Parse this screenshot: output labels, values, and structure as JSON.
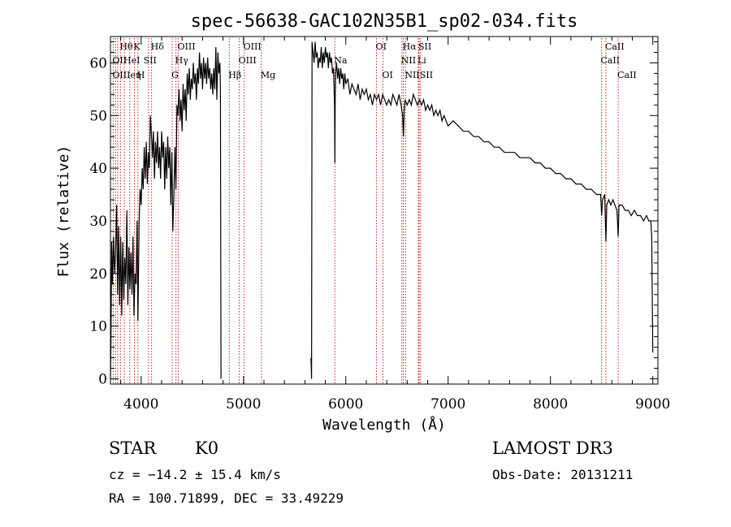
{
  "chart_data": {
    "type": "line",
    "title": "spec-56638-GAC102N35B1_sp02-034.fits",
    "xlabel": "Wavelength (Å)",
    "ylabel": "Flux (relative)",
    "xlim": [
      3700,
      9050
    ],
    "ylim": [
      -1,
      65
    ],
    "xticks": [
      4000,
      5000,
      6000,
      7000,
      8000,
      9000
    ],
    "yticks": [
      0,
      10,
      20,
      30,
      40,
      50,
      60
    ],
    "grid": false,
    "series": [
      {
        "name": "flux",
        "gap": [
          4780,
          5660
        ],
        "points": [
          [
            3700,
            0
          ],
          [
            3705,
            7
          ],
          [
            3712,
            26
          ],
          [
            3720,
            18
          ],
          [
            3730,
            27
          ],
          [
            3740,
            20
          ],
          [
            3750,
            24
          ],
          [
            3760,
            33
          ],
          [
            3770,
            16
          ],
          [
            3780,
            29
          ],
          [
            3790,
            14
          ],
          [
            3800,
            27
          ],
          [
            3810,
            12
          ],
          [
            3820,
            26
          ],
          [
            3830,
            15
          ],
          [
            3840,
            23
          ],
          [
            3850,
            18
          ],
          [
            3860,
            32
          ],
          [
            3870,
            14
          ],
          [
            3880,
            25
          ],
          [
            3890,
            17
          ],
          [
            3900,
            24
          ],
          [
            3910,
            16
          ],
          [
            3920,
            27
          ],
          [
            3930,
            12
          ],
          [
            3940,
            20
          ],
          [
            3950,
            18
          ],
          [
            3960,
            30
          ],
          [
            3968,
            11
          ],
          [
            3980,
            30
          ],
          [
            3990,
            36
          ],
          [
            4000,
            33
          ],
          [
            4010,
            40
          ],
          [
            4020,
            36
          ],
          [
            4030,
            44
          ],
          [
            4040,
            38
          ],
          [
            4050,
            45
          ],
          [
            4060,
            37
          ],
          [
            4070,
            43
          ],
          [
            4080,
            40
          ],
          [
            4090,
            50
          ],
          [
            4102,
            46
          ],
          [
            4110,
            42
          ],
          [
            4120,
            47
          ],
          [
            4130,
            38
          ],
          [
            4140,
            45
          ],
          [
            4150,
            41
          ],
          [
            4160,
            47
          ],
          [
            4170,
            40
          ],
          [
            4180,
            44
          ],
          [
            4190,
            38
          ],
          [
            4200,
            47
          ],
          [
            4210,
            42
          ],
          [
            4220,
            45
          ],
          [
            4230,
            36
          ],
          [
            4240,
            44
          ],
          [
            4250,
            38
          ],
          [
            4260,
            46
          ],
          [
            4270,
            40
          ],
          [
            4280,
            44
          ],
          [
            4290,
            33
          ],
          [
            4300,
            43
          ],
          [
            4310,
            28
          ],
          [
            4320,
            35
          ],
          [
            4330,
            44
          ],
          [
            4340,
            36
          ],
          [
            4350,
            52
          ],
          [
            4360,
            50
          ],
          [
            4370,
            55
          ],
          [
            4380,
            49
          ],
          [
            4390,
            53
          ],
          [
            4400,
            47
          ],
          [
            4410,
            56
          ],
          [
            4420,
            51
          ],
          [
            4430,
            55
          ],
          [
            4440,
            49
          ],
          [
            4450,
            58
          ],
          [
            4460,
            54
          ],
          [
            4470,
            59
          ],
          [
            4480,
            53
          ],
          [
            4490,
            57
          ],
          [
            4500,
            55
          ],
          [
            4510,
            60
          ],
          [
            4520,
            56
          ],
          [
            4530,
            58
          ],
          [
            4540,
            53
          ],
          [
            4550,
            59
          ],
          [
            4560,
            56
          ],
          [
            4570,
            62
          ],
          [
            4580,
            57
          ],
          [
            4590,
            60
          ],
          [
            4600,
            55
          ],
          [
            4610,
            61
          ],
          [
            4620,
            57
          ],
          [
            4630,
            60
          ],
          [
            4640,
            56
          ],
          [
            4650,
            61
          ],
          [
            4660,
            57
          ],
          [
            4670,
            59
          ],
          [
            4680,
            55
          ],
          [
            4690,
            58
          ],
          [
            4700,
            54
          ],
          [
            4710,
            59
          ],
          [
            4720,
            55
          ],
          [
            4730,
            63
          ],
          [
            4740,
            53
          ],
          [
            4750,
            62
          ],
          [
            4760,
            58
          ],
          [
            4770,
            60
          ],
          [
            4775,
            55
          ],
          [
            4780,
            0
          ],
          [
            5660,
            4
          ],
          [
            5665,
            0
          ],
          [
            5670,
            64
          ],
          [
            5680,
            62
          ],
          [
            5690,
            60
          ],
          [
            5700,
            64
          ],
          [
            5710,
            61
          ],
          [
            5720,
            62
          ],
          [
            5730,
            59
          ],
          [
            5740,
            61
          ],
          [
            5750,
            60
          ],
          [
            5760,
            63
          ],
          [
            5770,
            59
          ],
          [
            5780,
            62
          ],
          [
            5790,
            60
          ],
          [
            5800,
            63
          ],
          [
            5810,
            61
          ],
          [
            5820,
            62
          ],
          [
            5830,
            59
          ],
          [
            5840,
            62
          ],
          [
            5850,
            60
          ],
          [
            5860,
            61
          ],
          [
            5870,
            58
          ],
          [
            5880,
            59
          ],
          [
            5890,
            52
          ],
          [
            5893,
            41
          ],
          [
            5896,
            53
          ],
          [
            5900,
            58
          ],
          [
            5910,
            60
          ],
          [
            5920,
            57
          ],
          [
            5930,
            59
          ],
          [
            5940,
            56
          ],
          [
            5950,
            59
          ],
          [
            5960,
            57
          ],
          [
            5970,
            58
          ],
          [
            5980,
            55
          ],
          [
            5990,
            58
          ],
          [
            6000,
            56
          ],
          [
            6020,
            57
          ],
          [
            6040,
            54
          ],
          [
            6060,
            56
          ],
          [
            6080,
            55
          ],
          [
            6100,
            54
          ],
          [
            6120,
            56
          ],
          [
            6140,
            53
          ],
          [
            6160,
            55
          ],
          [
            6180,
            54
          ],
          [
            6200,
            55
          ],
          [
            6220,
            53
          ],
          [
            6240,
            54
          ],
          [
            6260,
            52
          ],
          [
            6280,
            54
          ],
          [
            6300,
            53
          ],
          [
            6320,
            54
          ],
          [
            6340,
            52
          ],
          [
            6360,
            54
          ],
          [
            6380,
            53
          ],
          [
            6400,
            52
          ],
          [
            6420,
            53
          ],
          [
            6440,
            52
          ],
          [
            6460,
            54
          ],
          [
            6480,
            53
          ],
          [
            6500,
            52
          ],
          [
            6520,
            54
          ],
          [
            6540,
            52
          ],
          [
            6555,
            50
          ],
          [
            6563,
            46
          ],
          [
            6570,
            51
          ],
          [
            6580,
            53
          ],
          [
            6600,
            52
          ],
          [
            6620,
            53
          ],
          [
            6640,
            52
          ],
          [
            6660,
            54
          ],
          [
            6680,
            53
          ],
          [
            6700,
            52
          ],
          [
            6720,
            53
          ],
          [
            6740,
            52
          ],
          [
            6760,
            53
          ],
          [
            6780,
            51
          ],
          [
            6800,
            52
          ],
          [
            6820,
            51
          ],
          [
            6840,
            52
          ],
          [
            6860,
            50
          ],
          [
            6880,
            51
          ],
          [
            6900,
            50
          ],
          [
            6920,
            51
          ],
          [
            6940,
            49
          ],
          [
            6960,
            50
          ],
          [
            6980,
            49
          ],
          [
            7000,
            48
          ],
          [
            7050,
            49
          ],
          [
            7100,
            48
          ],
          [
            7150,
            47
          ],
          [
            7200,
            47
          ],
          [
            7250,
            46
          ],
          [
            7300,
            46
          ],
          [
            7350,
            45
          ],
          [
            7400,
            45
          ],
          [
            7450,
            44
          ],
          [
            7500,
            44
          ],
          [
            7550,
            43
          ],
          [
            7600,
            43
          ],
          [
            7650,
            43
          ],
          [
            7700,
            42
          ],
          [
            7750,
            42
          ],
          [
            7800,
            42
          ],
          [
            7850,
            41
          ],
          [
            7900,
            41
          ],
          [
            7950,
            40
          ],
          [
            8000,
            40
          ],
          [
            8050,
            39
          ],
          [
            8100,
            39
          ],
          [
            8150,
            38
          ],
          [
            8200,
            38
          ],
          [
            8250,
            37
          ],
          [
            8300,
            37
          ],
          [
            8350,
            36
          ],
          [
            8400,
            36
          ],
          [
            8450,
            35
          ],
          [
            8490,
            35
          ],
          [
            8500,
            31
          ],
          [
            8510,
            34
          ],
          [
            8530,
            35
          ],
          [
            8542,
            26
          ],
          [
            8550,
            33
          ],
          [
            8570,
            34
          ],
          [
            8590,
            33
          ],
          [
            8610,
            34
          ],
          [
            8630,
            33
          ],
          [
            8650,
            32
          ],
          [
            8662,
            27
          ],
          [
            8670,
            33
          ],
          [
            8700,
            33
          ],
          [
            8730,
            32
          ],
          [
            8760,
            32
          ],
          [
            8790,
            31
          ],
          [
            8820,
            32
          ],
          [
            8850,
            31
          ],
          [
            8880,
            31
          ],
          [
            8910,
            30
          ],
          [
            8940,
            31
          ],
          [
            8960,
            30
          ],
          [
            8980,
            30
          ],
          [
            8990,
            27
          ],
          [
            9000,
            5
          ]
        ]
      }
    ],
    "line_labels": [
      {
        "label": "Hθ",
        "wl": 3798,
        "row": 1
      },
      {
        "label": "OII",
        "wl": 3727,
        "row": 2
      },
      {
        "label": "OIIIeη",
        "wl": 3727,
        "row": 3
      },
      {
        "label": "K",
        "wl": 3934,
        "row": 1
      },
      {
        "label": "HeI",
        "wl": 3835,
        "row": 2
      },
      {
        "label": "H",
        "wl": 3968,
        "row": 3
      },
      {
        "label": "SII",
        "wl": 4030,
        "row": 2
      },
      {
        "label": "Hδ",
        "wl": 4102,
        "row": 1
      },
      {
        "label": "OIII",
        "wl": 4363,
        "row": 1
      },
      {
        "label": "Hγ",
        "wl": 4340,
        "row": 2
      },
      {
        "label": "G",
        "wl": 4304,
        "row": 3
      },
      {
        "label": "Hβ",
        "wl": 4861,
        "row": 3
      },
      {
        "label": "OIII",
        "wl": 5007,
        "row": 1
      },
      {
        "label": "OIII",
        "wl": 4959,
        "row": 2
      },
      {
        "label": "Mg",
        "wl": 5175,
        "row": 3
      },
      {
        "label": "Na",
        "wl": 5893,
        "row": 2
      },
      {
        "label": "OI",
        "wl": 6300,
        "row": 1
      },
      {
        "label": "OI",
        "wl": 6363,
        "row": 3
      },
      {
        "label": "Hα",
        "wl": 6563,
        "row": 1
      },
      {
        "label": "SII",
        "wl": 6716,
        "row": 1
      },
      {
        "label": "NII",
        "wl": 6548,
        "row": 2
      },
      {
        "label": "Li",
        "wl": 6708,
        "row": 2
      },
      {
        "label": "NII",
        "wl": 6584,
        "row": 3
      },
      {
        "label": "SII",
        "wl": 6731,
        "row": 3
      },
      {
        "label": "CaII",
        "wl": 8542,
        "row": 1
      },
      {
        "label": "CaII",
        "wl": 8498,
        "row": 2
      },
      {
        "label": "CaII",
        "wl": 8662,
        "row": 3
      }
    ],
    "line_positions": [
      3727,
      3750,
      3771,
      3798,
      3835,
      3889,
      3934,
      3968,
      4072,
      4102,
      4304,
      4340,
      4363,
      4861,
      4959,
      5007,
      5175,
      5893,
      6300,
      6363,
      6548,
      6563,
      6584,
      6708,
      6716,
      6731,
      8498,
      8542,
      8662
    ],
    "colors": {
      "spectrum": "#000000",
      "lines": "#cc2222",
      "axes": "#000000"
    }
  },
  "info": {
    "class_label": "STAR",
    "subclass_label": "K0",
    "survey_label": "LAMOST DR3",
    "redshift_text": "cz = −14.2 ± 15.4 km/s",
    "obs_date_text": "Obs-Date: 20131211",
    "coords_text": "RA = 100.71899, DEC =  33.49229"
  }
}
